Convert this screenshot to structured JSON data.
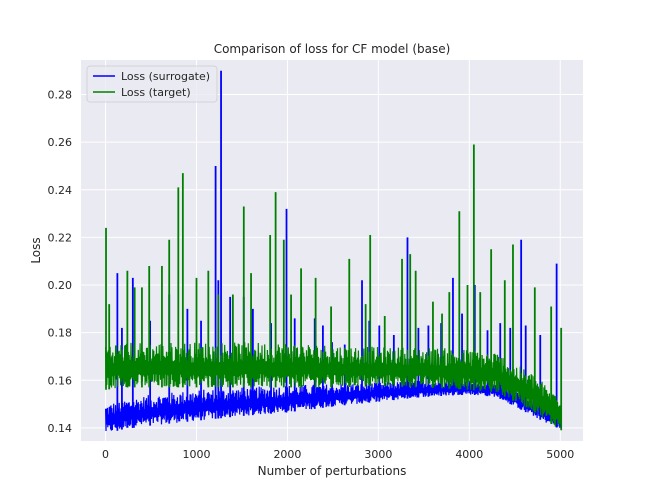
{
  "chart_data": {
    "type": "line",
    "title": "Comparison of loss for CF model (base)",
    "xlabel": "Number of perturbations",
    "ylabel": "Loss",
    "xlim": [
      -270,
      5250
    ],
    "ylim": [
      0.1345,
      0.2945
    ],
    "xticks": [
      0,
      1000,
      2000,
      3000,
      4000,
      5000
    ],
    "xtick_labels": [
      "0",
      "1000",
      "2000",
      "3000",
      "4000",
      "5000"
    ],
    "yticks": [
      0.14,
      0.16,
      0.18,
      0.2,
      0.22,
      0.24,
      0.26,
      0.28
    ],
    "ytick_labels": [
      "0.14",
      "0.16",
      "0.18",
      "0.20",
      "0.22",
      "0.24",
      "0.26",
      "0.28"
    ],
    "grid": true,
    "legend_position": "top-left",
    "background_color": "#EAEAF2",
    "series": [
      {
        "name": "Loss (surrogate)",
        "color": "#0000FF",
        "lower_envelope": [
          [
            0,
            0.1375
          ],
          [
            200,
            0.1395
          ],
          [
            500,
            0.141
          ],
          [
            1000,
            0.143
          ],
          [
            1500,
            0.145
          ],
          [
            2000,
            0.1465
          ],
          [
            2500,
            0.149
          ],
          [
            3000,
            0.151
          ],
          [
            3500,
            0.153
          ],
          [
            4000,
            0.154
          ],
          [
            4300,
            0.153
          ],
          [
            4500,
            0.149
          ],
          [
            4700,
            0.145
          ],
          [
            4850,
            0.142
          ],
          [
            5000,
            0.1395
          ]
        ],
        "upper_envelope": [
          [
            0,
            0.15
          ],
          [
            200,
            0.152
          ],
          [
            500,
            0.154
          ],
          [
            1000,
            0.156
          ],
          [
            1500,
            0.157
          ],
          [
            2000,
            0.158
          ],
          [
            2500,
            0.1585
          ],
          [
            3000,
            0.159
          ],
          [
            3500,
            0.16
          ],
          [
            4000,
            0.16
          ],
          [
            4300,
            0.159
          ],
          [
            4500,
            0.156
          ],
          [
            4700,
            0.152
          ],
          [
            4850,
            0.15
          ],
          [
            5000,
            0.146
          ]
        ],
        "spikes": [
          [
            130,
            0.205
          ],
          [
            180,
            0.182
          ],
          [
            300,
            0.203
          ],
          [
            490,
            0.185
          ],
          [
            700,
            0.196
          ],
          [
            900,
            0.19
          ],
          [
            1050,
            0.185
          ],
          [
            1210,
            0.25
          ],
          [
            1240,
            0.202
          ],
          [
            1270,
            0.29
          ],
          [
            1370,
            0.195
          ],
          [
            1520,
            0.195
          ],
          [
            1620,
            0.19
          ],
          [
            1820,
            0.184
          ],
          [
            1990,
            0.232
          ],
          [
            2080,
            0.186
          ],
          [
            2300,
            0.186
          ],
          [
            2390,
            0.183
          ],
          [
            2490,
            0.176
          ],
          [
            2630,
            0.175
          ],
          [
            2820,
            0.202
          ],
          [
            2900,
            0.185
          ],
          [
            3010,
            0.183
          ],
          [
            3170,
            0.179
          ],
          [
            3320,
            0.22
          ],
          [
            3440,
            0.182
          ],
          [
            3550,
            0.183
          ],
          [
            3690,
            0.184
          ],
          [
            3820,
            0.203
          ],
          [
            3920,
            0.188
          ],
          [
            4060,
            0.2
          ],
          [
            4200,
            0.181
          ],
          [
            4340,
            0.184
          ],
          [
            4450,
            0.182
          ],
          [
            4570,
            0.219
          ],
          [
            4620,
            0.183
          ],
          [
            4780,
            0.179
          ],
          [
            4960,
            0.209
          ]
        ]
      },
      {
        "name": "Loss (target)",
        "color": "#008000",
        "lower_envelope": [
          [
            0,
            0.156
          ],
          [
            200,
            0.157
          ],
          [
            500,
            0.157
          ],
          [
            1000,
            0.157
          ],
          [
            1500,
            0.157
          ],
          [
            2000,
            0.157
          ],
          [
            2500,
            0.157
          ],
          [
            3000,
            0.1575
          ],
          [
            3500,
            0.157
          ],
          [
            4000,
            0.156
          ],
          [
            4300,
            0.155
          ],
          [
            4500,
            0.151
          ],
          [
            4700,
            0.147
          ],
          [
            4850,
            0.143
          ],
          [
            5000,
            0.139
          ]
        ],
        "upper_envelope": [
          [
            0,
            0.176
          ],
          [
            200,
            0.176
          ],
          [
            500,
            0.176
          ],
          [
            1000,
            0.176
          ],
          [
            1500,
            0.176
          ],
          [
            2000,
            0.176
          ],
          [
            2500,
            0.175
          ],
          [
            3000,
            0.174
          ],
          [
            3500,
            0.174
          ],
          [
            4000,
            0.173
          ],
          [
            4300,
            0.172
          ],
          [
            4500,
            0.167
          ],
          [
            4700,
            0.163
          ],
          [
            4850,
            0.158
          ],
          [
            5000,
            0.155
          ]
        ],
        "spikes": [
          [
            5,
            0.224
          ],
          [
            40,
            0.192
          ],
          [
            240,
            0.206
          ],
          [
            320,
            0.199
          ],
          [
            400,
            0.199
          ],
          [
            480,
            0.208
          ],
          [
            620,
            0.208
          ],
          [
            700,
            0.219
          ],
          [
            800,
            0.241
          ],
          [
            850,
            0.247
          ],
          [
            1000,
            0.203
          ],
          [
            1130,
            0.206
          ],
          [
            1240,
            0.196
          ],
          [
            1400,
            0.196
          ],
          [
            1520,
            0.233
          ],
          [
            1600,
            0.205
          ],
          [
            1810,
            0.221
          ],
          [
            1870,
            0.239
          ],
          [
            1960,
            0.219
          ],
          [
            2040,
            0.196
          ],
          [
            2150,
            0.207
          ],
          [
            2310,
            0.203
          ],
          [
            2480,
            0.191
          ],
          [
            2680,
            0.211
          ],
          [
            2860,
            0.192
          ],
          [
            2910,
            0.221
          ],
          [
            3070,
            0.187
          ],
          [
            3260,
            0.211
          ],
          [
            3350,
            0.213
          ],
          [
            3410,
            0.206
          ],
          [
            3600,
            0.193
          ],
          [
            3700,
            0.188
          ],
          [
            3780,
            0.197
          ],
          [
            3890,
            0.231
          ],
          [
            3980,
            0.2
          ],
          [
            4050,
            0.259
          ],
          [
            4120,
            0.197
          ],
          [
            4240,
            0.215
          ],
          [
            4390,
            0.202
          ],
          [
            4480,
            0.217
          ],
          [
            4720,
            0.199
          ],
          [
            4900,
            0.191
          ],
          [
            5010,
            0.182
          ]
        ]
      }
    ]
  }
}
